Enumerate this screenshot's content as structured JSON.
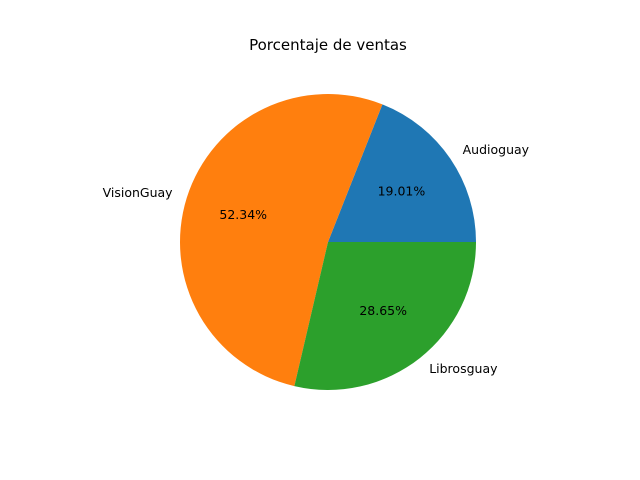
{
  "chart_data": {
    "type": "pie",
    "title": "Porcentaje de ventas",
    "labels": [
      "Audioguay",
      "VisionGuay",
      "Librosguay"
    ],
    "values": [
      19.01,
      52.34,
      28.65
    ],
    "percent_labels": [
      "19.01%",
      "52.34%",
      "28.65%"
    ],
    "colors": [
      "#1f77b4",
      "#ff7f0e",
      "#2ca02c"
    ],
    "start_angle_deg": 0,
    "direction": "counterclockwise",
    "legend": "none"
  }
}
